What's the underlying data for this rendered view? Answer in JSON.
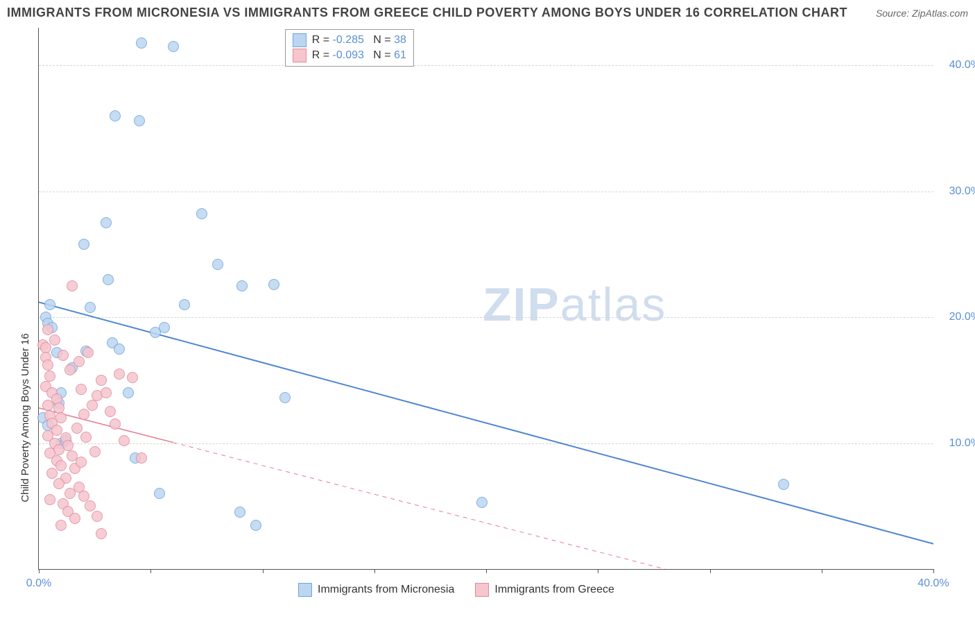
{
  "title": "IMMIGRANTS FROM MICRONESIA VS IMMIGRANTS FROM GREECE CHILD POVERTY AMONG BOYS UNDER 16 CORRELATION CHART",
  "source_label": "Source: ",
  "source_value": "ZipAtlas.com",
  "ylabel": "Child Poverty Among Boys Under 16",
  "watermark_a": "ZIP",
  "watermark_b": "atlas",
  "chart": {
    "type": "scatter",
    "xlim": [
      0,
      40
    ],
    "ylim": [
      0,
      43
    ],
    "x_tick_positions": [
      0,
      5,
      10,
      15,
      20,
      25,
      30,
      35,
      40
    ],
    "x_tick_labels": {
      "0": "0.0%",
      "40": "40.0%"
    },
    "y_gridlines": [
      10,
      20,
      30,
      40
    ],
    "y_tick_labels": {
      "10": "10.0%",
      "20": "20.0%",
      "30": "30.0%",
      "40": "40.0%"
    },
    "background_color": "#ffffff",
    "grid_color": "#d5d5d5",
    "axis_color": "#555555",
    "tick_label_color": "#5a8fd6",
    "marker_radius": 8,
    "series": [
      {
        "id": "micronesia",
        "label": "Immigrants from Micronesia",
        "color_fill": "#bcd6f2",
        "color_stroke": "#6fa3db",
        "R": "-0.285",
        "N": "38",
        "trend": {
          "x1": 0,
          "y1": 21.2,
          "x2": 40,
          "y2": 2.0,
          "solid_until_x": 40,
          "stroke": "#4f86d1",
          "width": 2
        },
        "points": [
          [
            0.3,
            20.0
          ],
          [
            0.4,
            19.5
          ],
          [
            0.6,
            19.2
          ],
          [
            0.5,
            21.0
          ],
          [
            0.8,
            17.2
          ],
          [
            0.9,
            13.2
          ],
          [
            0.2,
            12.0
          ],
          [
            0.4,
            11.4
          ],
          [
            1.0,
            10.0
          ],
          [
            1.0,
            14.0
          ],
          [
            1.2,
            10.2
          ],
          [
            1.5,
            16.0
          ],
          [
            2.1,
            17.3
          ],
          [
            2.3,
            20.8
          ],
          [
            2.0,
            25.8
          ],
          [
            3.1,
            23.0
          ],
          [
            3.3,
            18.0
          ],
          [
            3.6,
            17.5
          ],
          [
            3.0,
            27.5
          ],
          [
            3.4,
            36.0
          ],
          [
            4.0,
            14.0
          ],
          [
            4.3,
            8.8
          ],
          [
            4.5,
            35.6
          ],
          [
            4.6,
            41.8
          ],
          [
            5.2,
            18.8
          ],
          [
            5.4,
            6.0
          ],
          [
            5.6,
            19.2
          ],
          [
            6.0,
            41.5
          ],
          [
            6.5,
            21.0
          ],
          [
            7.3,
            28.2
          ],
          [
            8.0,
            24.2
          ],
          [
            9.0,
            4.5
          ],
          [
            9.1,
            22.5
          ],
          [
            9.7,
            3.5
          ],
          [
            10.5,
            22.6
          ],
          [
            11.0,
            13.6
          ],
          [
            19.8,
            5.3
          ],
          [
            33.3,
            6.7
          ]
        ]
      },
      {
        "id": "greece",
        "label": "Immigrants from Greece",
        "color_fill": "#f6c5ce",
        "color_stroke": "#e08a9b",
        "R": "-0.093",
        "N": "61",
        "trend": {
          "x1": 0,
          "y1": 12.8,
          "x2": 28,
          "y2": 0.0,
          "solid_until_x": 6,
          "stroke": "#e77a93",
          "width": 1.5
        },
        "points": [
          [
            0.2,
            17.8
          ],
          [
            0.3,
            17.6
          ],
          [
            0.3,
            16.8
          ],
          [
            0.4,
            16.2
          ],
          [
            0.5,
            15.3
          ],
          [
            0.3,
            14.5
          ],
          [
            0.6,
            14.0
          ],
          [
            0.8,
            13.5
          ],
          [
            0.4,
            13.0
          ],
          [
            0.9,
            12.8
          ],
          [
            0.5,
            12.2
          ],
          [
            1.0,
            12.0
          ],
          [
            0.6,
            11.6
          ],
          [
            0.8,
            11.0
          ],
          [
            0.4,
            10.6
          ],
          [
            1.2,
            10.4
          ],
          [
            0.7,
            10.0
          ],
          [
            1.3,
            9.8
          ],
          [
            0.9,
            9.5
          ],
          [
            0.5,
            9.2
          ],
          [
            1.5,
            9.0
          ],
          [
            0.8,
            8.6
          ],
          [
            1.0,
            8.2
          ],
          [
            1.6,
            8.0
          ],
          [
            0.6,
            7.6
          ],
          [
            1.2,
            7.2
          ],
          [
            0.9,
            6.8
          ],
          [
            1.8,
            6.5
          ],
          [
            1.4,
            6.0
          ],
          [
            2.0,
            5.8
          ],
          [
            2.3,
            5.0
          ],
          [
            2.6,
            4.2
          ],
          [
            2.8,
            2.8
          ],
          [
            1.1,
            5.2
          ],
          [
            1.3,
            4.6
          ],
          [
            1.6,
            4.0
          ],
          [
            1.9,
            14.3
          ],
          [
            2.1,
            10.5
          ],
          [
            2.4,
            13.0
          ],
          [
            2.0,
            12.3
          ],
          [
            1.7,
            11.2
          ],
          [
            1.4,
            15.8
          ],
          [
            1.8,
            16.5
          ],
          [
            2.2,
            17.2
          ],
          [
            2.6,
            13.8
          ],
          [
            2.8,
            15.0
          ],
          [
            3.0,
            14.0
          ],
          [
            3.2,
            12.5
          ],
          [
            3.4,
            11.5
          ],
          [
            3.6,
            15.5
          ],
          [
            3.8,
            10.2
          ],
          [
            4.2,
            15.2
          ],
          [
            4.6,
            8.8
          ],
          [
            1.5,
            22.5
          ],
          [
            0.4,
            19.0
          ],
          [
            0.7,
            18.2
          ],
          [
            1.1,
            17.0
          ],
          [
            1.9,
            8.5
          ],
          [
            2.5,
            9.3
          ],
          [
            0.5,
            5.5
          ],
          [
            1.0,
            3.5
          ]
        ]
      }
    ]
  },
  "legend_top": {
    "R_label": "R =",
    "N_label": "N ="
  },
  "legend_bottom_items": [
    "micronesia",
    "greece"
  ]
}
